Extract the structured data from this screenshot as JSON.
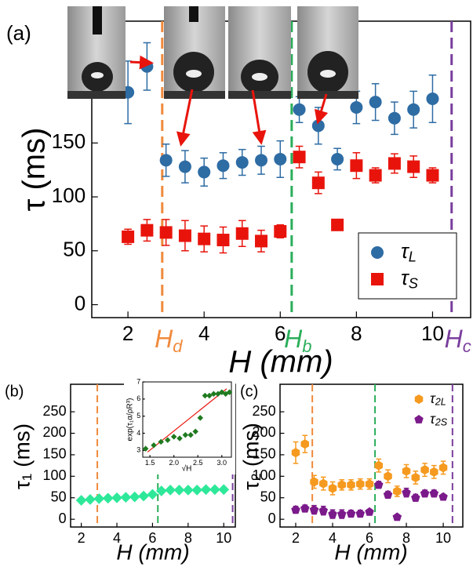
{
  "chart_data": [
    {
      "type": "scatter",
      "panel_label": "(a)",
      "xlabel": "H (mm)",
      "ylabel": "τ (ms)",
      "xlim": [
        1.05,
        11.0
      ],
      "ylim": [
        -12,
        263
      ],
      "xticks": [
        2,
        4,
        6,
        8,
        10
      ],
      "yticks": [
        0,
        50,
        100,
        150
      ],
      "legend": "lower right",
      "legend_frame": true,
      "x": [
        2,
        2.5,
        3,
        3.5,
        4,
        4.5,
        5,
        5.5,
        6,
        6.5,
        7,
        7.5,
        8,
        8.5,
        9,
        9.5,
        10
      ],
      "series": [
        {
          "name": "τ",
          "name_sub": "L",
          "color": "#2e6ca4",
          "marker": "circle",
          "values": [
            197,
            221,
            134,
            128,
            123,
            129,
            132,
            134,
            135,
            181,
            166,
            135,
            183,
            188,
            173,
            181,
            191
          ],
          "errors": [
            29,
            22,
            15,
            15,
            13,
            12,
            12,
            13,
            17,
            12,
            17,
            10,
            15,
            17,
            15,
            17,
            22
          ]
        },
        {
          "name": "τ",
          "name_sub": "S",
          "color": "#e8140c",
          "marker": "square",
          "values": [
            63,
            69,
            67,
            64,
            61,
            60,
            66,
            59,
            68,
            137,
            113,
            74,
            129,
            120,
            131,
            128,
            120
          ],
          "errors": [
            7,
            10,
            12,
            14,
            12,
            12,
            12,
            10,
            6,
            10,
            10,
            5,
            12,
            7,
            9,
            10,
            7
          ]
        }
      ],
      "vlines": [
        {
          "x": 2.9,
          "color": "#f08a3c",
          "label": "H",
          "label_sub": "d"
        },
        {
          "x": 6.3,
          "color": "#2aae5a",
          "label": "H",
          "label_sub": "b"
        },
        {
          "x": 10.5,
          "color": "#7a3e9d",
          "label": "H",
          "label_sub": "c"
        }
      ]
    },
    {
      "type": "scatter",
      "panel_label": "(b)",
      "xlabel": "H (mm)",
      "ylabel": "τ₁ (ms)",
      "xlim": [
        1.4,
        10.65
      ],
      "ylim": [
        -18,
        314
      ],
      "xticks": [
        2,
        4,
        6,
        8,
        10
      ],
      "yticks": [
        0,
        50,
        100,
        150,
        200,
        250
      ],
      "x": [
        2,
        2.5,
        3,
        3.5,
        4,
        4.5,
        5,
        5.5,
        6,
        6.5,
        7,
        7.5,
        8,
        8.5,
        9,
        9.5,
        10
      ],
      "series": [
        {
          "color": "#2ee89a",
          "marker": "diamond",
          "values": [
            44,
            46,
            48,
            49,
            50,
            51,
            52,
            54,
            58,
            66,
            68,
            68,
            68,
            68,
            69,
            69,
            69
          ]
        }
      ],
      "vlines": [
        {
          "x": 2.9,
          "color": "#f08a3c"
        },
        {
          "x": 6.3,
          "color": "#2aae5a"
        },
        {
          "x": 10.5,
          "color": "#7a3e9d"
        }
      ]
    },
    {
      "type": "scatter",
      "panel_label": "(c)",
      "xlabel": "H (mm)",
      "ylabel": "τ₂ (ms)",
      "xlim": [
        1.15,
        11.06
      ],
      "ylim": [
        -18,
        314
      ],
      "xticks": [
        2,
        4,
        6,
        8,
        10
      ],
      "yticks": [
        0,
        50,
        100,
        150,
        200,
        250
      ],
      "legend": "upper right",
      "x": [
        2,
        2.5,
        3,
        3.5,
        4,
        4.5,
        5,
        5.5,
        6,
        6.5,
        7,
        7.5,
        8,
        8.5,
        9,
        9.5,
        10
      ],
      "series": [
        {
          "name": "τ",
          "name_sub": "2L",
          "color": "#f59a1f",
          "marker": "hexagon",
          "values": [
            155,
            175,
            87,
            83,
            72,
            80,
            80,
            82,
            82,
            125,
            100,
            65,
            112,
            97,
            115,
            110,
            120
          ],
          "errors": [
            25,
            20,
            15,
            15,
            15,
            12,
            12,
            12,
            12,
            15,
            15,
            12,
            15,
            15,
            15,
            15,
            15
          ]
        },
        {
          "name": "τ",
          "name_sub": "2S",
          "color": "#7b1a8a",
          "marker": "pentagon",
          "values": [
            22,
            25,
            22,
            20,
            12,
            12,
            13,
            13,
            17,
            80,
            57,
            5,
            62,
            50,
            60,
            60,
            52
          ],
          "errors": [
            8,
            8,
            10,
            10,
            10,
            10,
            8,
            8,
            6,
            8,
            8,
            null,
            10,
            8,
            8,
            8,
            6
          ]
        }
      ],
      "vlines": [
        {
          "x": 2.9,
          "color": "#f08a3c"
        },
        {
          "x": 6.3,
          "color": "#2aae5a"
        },
        {
          "x": 10.5,
          "color": "#7a3e9d"
        }
      ]
    },
    {
      "type": "scatter",
      "xlabel": "√H",
      "ylabel": "exp(τ₁α/ρR³)",
      "xlim": [
        1.35,
        3.2
      ],
      "ylim": [
        2.6,
        7.0
      ],
      "xticks": [
        1.5,
        {
          "value": 2,
          "label": "2.0"
        },
        2.5,
        {
          "value": 3,
          "label": "3.0"
        }
      ],
      "yticks": [
        3,
        4,
        5,
        6,
        7
      ],
      "x": [
        1.41,
        1.58,
        1.73,
        1.87,
        2.0,
        2.12,
        2.24,
        2.35,
        2.45,
        2.55,
        2.65,
        2.74,
        2.83,
        2.92,
        3.0,
        3.08,
        3.16
      ],
      "series": [
        {
          "color": "#1f7a1f",
          "marker": "diamond",
          "values": [
            3.1,
            3.3,
            3.5,
            3.6,
            3.8,
            3.7,
            3.9,
            3.9,
            4.1,
            4.9,
            6.2,
            6.2,
            6.3,
            6.3,
            6.4,
            6.3,
            6.4
          ]
        }
      ],
      "fit": {
        "color": "#e8140c",
        "x": [
          1.45,
          3.1
        ],
        "y": [
          2.9,
          6.6
        ]
      }
    }
  ]
}
